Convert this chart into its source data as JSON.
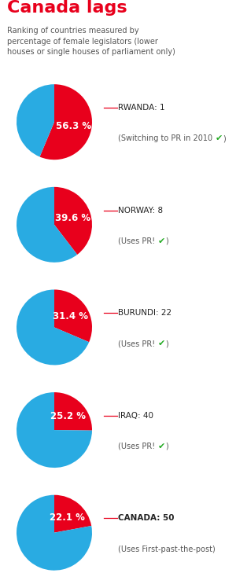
{
  "title": "Canada lags",
  "subtitle": "Ranking of countries measured by\npercentage of female legislators (lower\nhouses or single houses of parliament only)",
  "title_color": "#e8001c",
  "subtitle_color": "#555555",
  "background_color": "#ffffff",
  "pie_red": "#e8001c",
  "pie_blue": "#29abe2",
  "label_color": "#ffffff",
  "countries": [
    {
      "name": "RWANDA: 1",
      "note_before": "(Switching to PR in 2010 ",
      "note_check": "✔",
      "note_after": ")",
      "has_check": true,
      "pct": 56.3,
      "bold": false
    },
    {
      "name": "NORWAY: 8",
      "note_before": "(Uses PR! ",
      "note_check": "✔",
      "note_after": ")",
      "has_check": true,
      "pct": 39.6,
      "bold": false
    },
    {
      "name": "BURUNDI: 22",
      "note_before": "(Uses PR! ",
      "note_check": "✔",
      "note_after": ")",
      "has_check": true,
      "pct": 31.4,
      "bold": false
    },
    {
      "name": "IRAQ: 40",
      "note_before": "(Uses PR! ",
      "note_check": "✔",
      "note_after": ")",
      "has_check": true,
      "pct": 25.2,
      "bold": false
    },
    {
      "name": "CANADA: 50",
      "note_before": "(Uses First-past-the-post)",
      "note_check": "",
      "note_after": "",
      "has_check": false,
      "pct": 22.1,
      "bold": true
    }
  ]
}
